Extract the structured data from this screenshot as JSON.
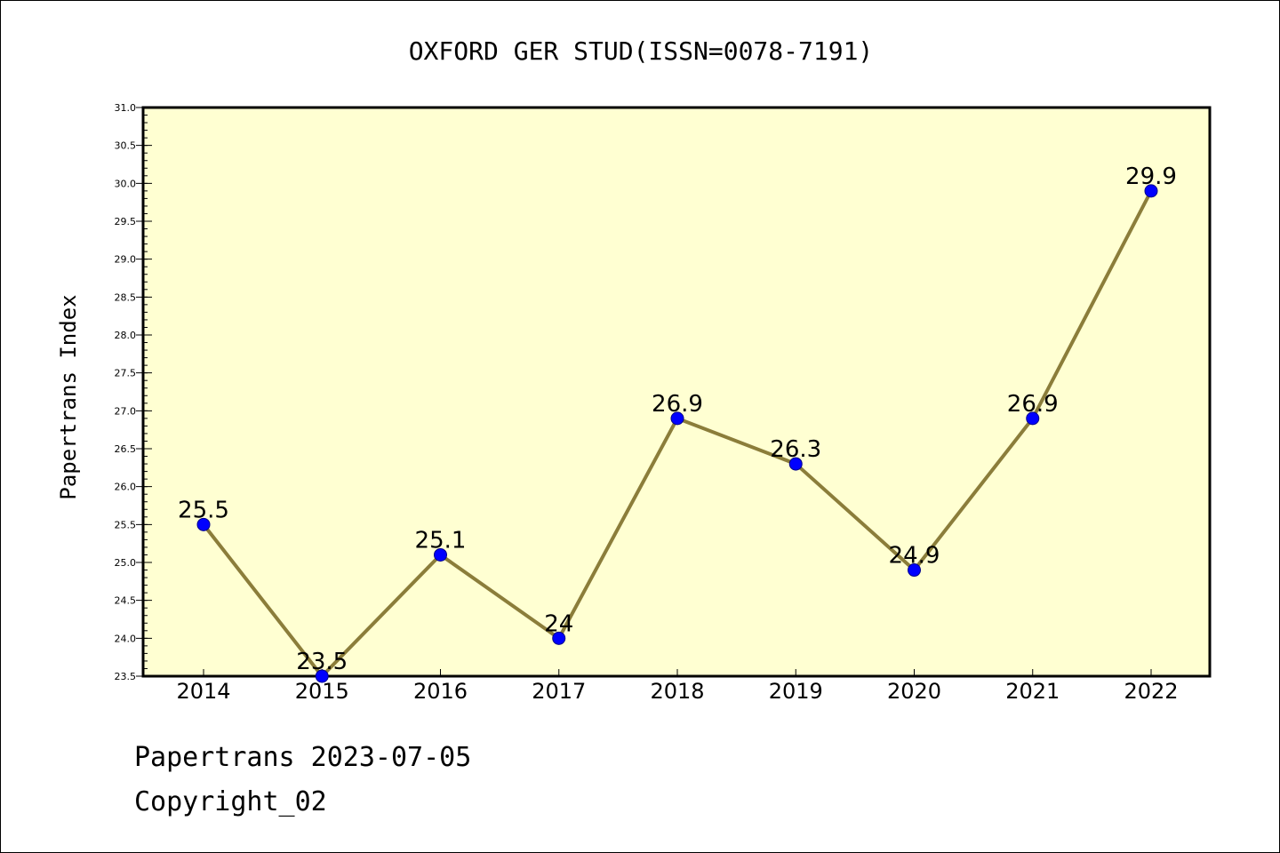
{
  "chart_data": {
    "type": "line",
    "title": "OXFORD GER STUD(ISSN=0078-7191)",
    "xlabel": "",
    "ylabel": "Papertrans Index",
    "categories": [
      "2014",
      "2015",
      "2016",
      "2017",
      "2018",
      "2019",
      "2020",
      "2021",
      "2022"
    ],
    "series": [
      {
        "values": [
          25.5,
          23.5,
          25.1,
          24.0,
          26.9,
          26.3,
          24.9,
          26.9,
          29.9
        ],
        "labels": [
          "25.5",
          "23.5",
          "25.1",
          "24",
          "26.9",
          "26.3",
          "24.9",
          "26.9",
          "29.9"
        ]
      }
    ],
    "ylim": [
      23.5,
      31.0
    ],
    "yticks": [
      "23.5",
      "24.0",
      "24.5",
      "25.0",
      "25.5",
      "26.0",
      "26.5",
      "27.0",
      "27.5",
      "28.0",
      "28.5",
      "29.0",
      "29.5",
      "30.0",
      "30.5",
      "31.0"
    ],
    "grid": false,
    "legend": "none"
  },
  "colors": {
    "plot_background": "#ffffd2",
    "line": "#8b7d3a",
    "marker": "#0000ff",
    "frame": "#000000"
  },
  "footer": {
    "line1": "Papertrans 2023-07-05",
    "line2": "Copyright_02"
  }
}
